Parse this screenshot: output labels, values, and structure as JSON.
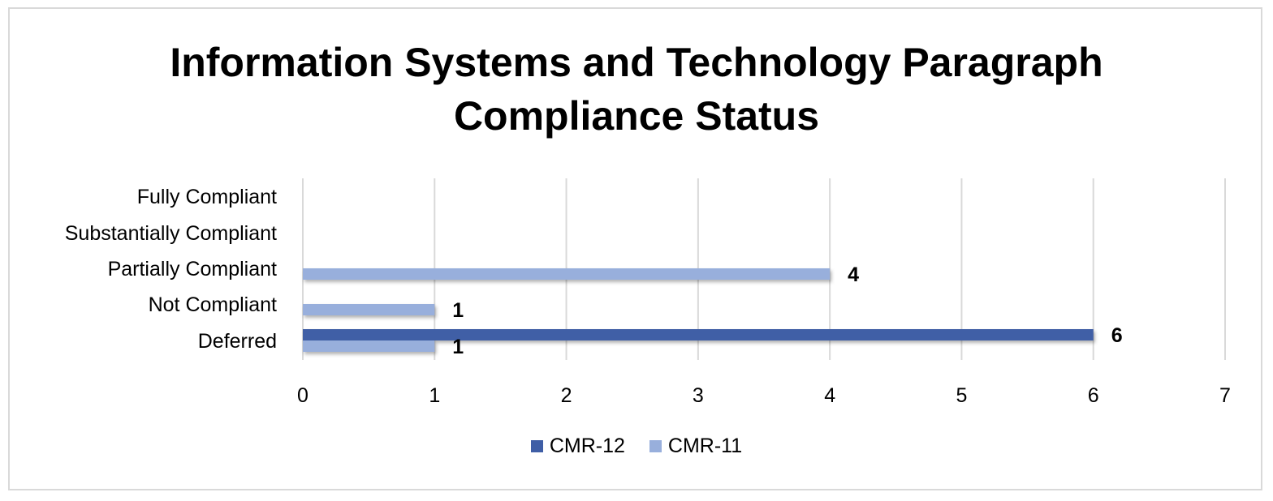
{
  "chart_data": {
    "type": "bar",
    "orientation": "horizontal",
    "title_lines": [
      "Information Systems and Technology Paragraph",
      "Compliance Status"
    ],
    "categories": [
      "Fully Compliant",
      "Substantially Compliant",
      "Partially Compliant",
      "Not Compliant",
      "Deferred"
    ],
    "series": [
      {
        "name": "CMR-12",
        "color": "#3f5ea6",
        "values": [
          0,
          0,
          0,
          0,
          6
        ]
      },
      {
        "name": "CMR-11",
        "color": "#98afdc",
        "values": [
          0,
          0,
          4,
          1,
          1
        ]
      }
    ],
    "xlim": [
      0,
      7
    ],
    "x_ticks": [
      "0",
      "1",
      "2",
      "3",
      "4",
      "5",
      "6",
      "7"
    ],
    "grid": true,
    "legend_position": "bottom",
    "xlabel": "",
    "ylabel": ""
  }
}
